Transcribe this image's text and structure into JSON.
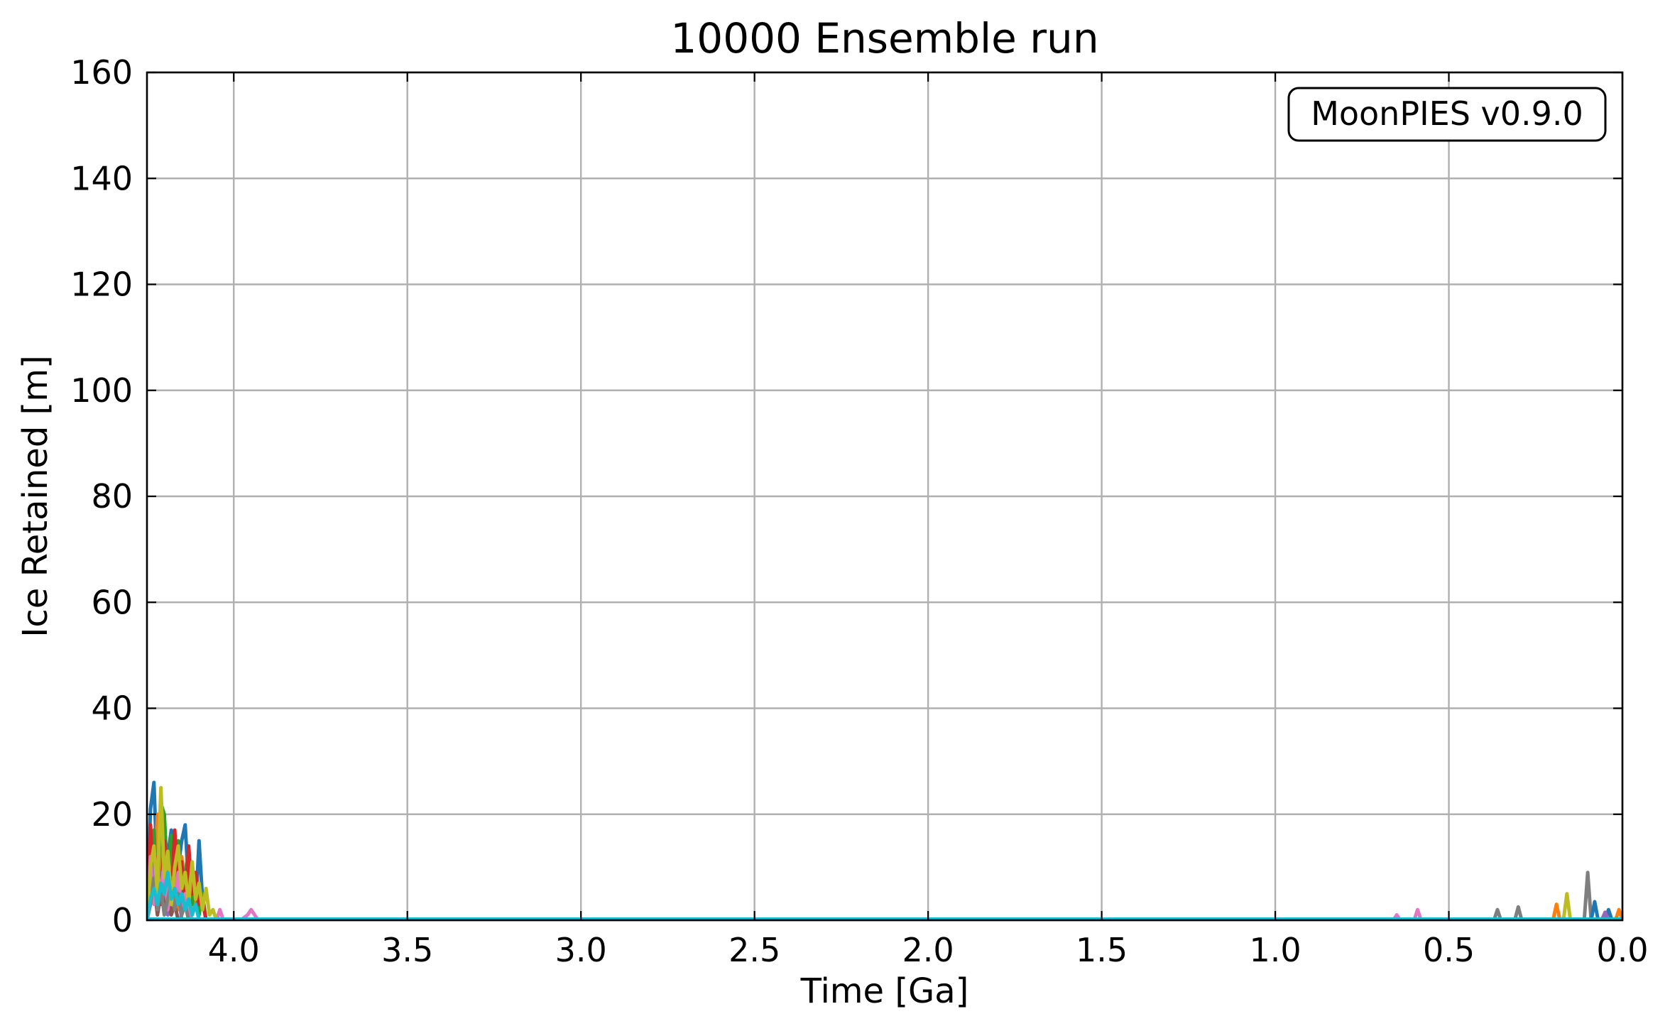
{
  "chart_data": {
    "type": "line",
    "title": "10000 Ensemble run",
    "xlabel": "Time [Ga]",
    "ylabel": "Ice Retained [m]",
    "xlim": [
      4.25,
      0.0
    ],
    "x_inverted": true,
    "ylim": [
      0,
      160
    ],
    "xticks": [
      4.0,
      3.5,
      3.0,
      2.5,
      2.0,
      1.5,
      1.0,
      0.5,
      0.0
    ],
    "xtick_labels": [
      "4.0",
      "3.5",
      "3.0",
      "2.5",
      "2.0",
      "1.5",
      "1.0",
      "0.5",
      "0.0"
    ],
    "yticks": [
      0,
      20,
      40,
      60,
      80,
      100,
      120,
      140,
      160
    ],
    "ytick_labels": [
      "0",
      "20",
      "40",
      "60",
      "80",
      "100",
      "120",
      "140",
      "160"
    ],
    "grid": true,
    "annotation": "MoonPIES v0.9.0",
    "annotation_placement": "top-right",
    "palette": [
      "#1f77b4",
      "#ff7f0e",
      "#2ca02c",
      "#d62728",
      "#9467bd",
      "#8c564b",
      "#e377c2",
      "#7f7f7f",
      "#bcbd22",
      "#17becf"
    ],
    "baseline": {
      "y": 0,
      "color": "#17becf"
    },
    "series": [
      {
        "color": "#1f77b4",
        "points": [
          [
            4.25,
            0
          ],
          [
            4.24,
            21
          ],
          [
            4.23,
            26
          ],
          [
            4.22,
            8
          ],
          [
            4.21,
            16
          ],
          [
            4.2,
            4
          ],
          [
            4.19,
            12
          ],
          [
            4.18,
            17
          ],
          [
            4.17,
            5
          ],
          [
            4.16,
            10
          ],
          [
            4.15,
            15
          ],
          [
            4.14,
            18
          ],
          [
            4.13,
            6
          ],
          [
            4.12,
            11
          ],
          [
            4.11,
            2
          ],
          [
            4.1,
            15
          ],
          [
            4.09,
            4
          ],
          [
            4.08,
            0
          ]
        ]
      },
      {
        "color": "#ff7f0e",
        "points": [
          [
            4.25,
            0
          ],
          [
            4.24,
            14
          ],
          [
            4.23,
            4
          ],
          [
            4.22,
            20
          ],
          [
            4.21,
            9
          ],
          [
            4.2,
            13
          ],
          [
            4.19,
            3
          ],
          [
            4.18,
            14
          ],
          [
            4.17,
            8
          ],
          [
            4.16,
            2
          ],
          [
            4.15,
            12
          ],
          [
            4.14,
            5
          ],
          [
            4.13,
            9
          ],
          [
            4.12,
            1
          ],
          [
            4.11,
            7
          ],
          [
            4.1,
            0
          ]
        ]
      },
      {
        "color": "#2ca02c",
        "points": [
          [
            4.25,
            0
          ],
          [
            4.24,
            9
          ],
          [
            4.23,
            17
          ],
          [
            4.22,
            3
          ],
          [
            4.21,
            22
          ],
          [
            4.2,
            20
          ],
          [
            4.19,
            7
          ],
          [
            4.18,
            16
          ],
          [
            4.17,
            11
          ],
          [
            4.16,
            15
          ],
          [
            4.15,
            4
          ],
          [
            4.14,
            9
          ],
          [
            4.13,
            13
          ],
          [
            4.12,
            3
          ],
          [
            4.11,
            8
          ],
          [
            4.1,
            1
          ],
          [
            4.09,
            5
          ],
          [
            4.08,
            0
          ]
        ]
      },
      {
        "color": "#d62728",
        "points": [
          [
            4.25,
            0
          ],
          [
            4.24,
            18
          ],
          [
            4.23,
            6
          ],
          [
            4.22,
            12
          ],
          [
            4.21,
            3
          ],
          [
            4.2,
            15
          ],
          [
            4.19,
            9
          ],
          [
            4.18,
            4
          ],
          [
            4.17,
            17
          ],
          [
            4.16,
            6
          ],
          [
            4.15,
            11
          ],
          [
            4.14,
            2
          ],
          [
            4.13,
            14
          ],
          [
            4.12,
            5
          ],
          [
            4.11,
            9
          ],
          [
            4.1,
            3
          ],
          [
            4.09,
            4
          ],
          [
            4.08,
            0
          ]
        ]
      },
      {
        "color": "#9467bd",
        "points": [
          [
            4.25,
            0
          ],
          [
            4.24,
            5
          ],
          [
            4.23,
            11
          ],
          [
            4.22,
            2
          ],
          [
            4.21,
            9
          ],
          [
            4.2,
            6
          ],
          [
            4.19,
            1
          ],
          [
            4.18,
            8
          ],
          [
            4.17,
            3
          ],
          [
            4.16,
            6
          ],
          [
            4.15,
            0
          ]
        ]
      },
      {
        "color": "#8c564b",
        "points": [
          [
            4.25,
            0
          ],
          [
            4.24,
            4
          ],
          [
            4.23,
            7
          ],
          [
            4.22,
            1
          ],
          [
            4.21,
            5
          ],
          [
            4.2,
            2
          ],
          [
            4.19,
            6
          ],
          [
            4.18,
            1
          ],
          [
            4.17,
            3
          ],
          [
            4.16,
            0
          ]
        ]
      },
      {
        "color": "#e377c2",
        "points": [
          [
            4.25,
            0
          ],
          [
            4.24,
            12
          ],
          [
            4.23,
            3
          ],
          [
            4.22,
            9
          ],
          [
            4.21,
            5
          ],
          [
            4.2,
            11
          ],
          [
            4.19,
            2
          ],
          [
            4.18,
            7
          ],
          [
            4.17,
            4
          ],
          [
            4.16,
            9
          ],
          [
            4.15,
            1
          ],
          [
            4.14,
            5
          ],
          [
            4.13,
            2
          ],
          [
            4.12,
            0
          ],
          [
            4.05,
            0
          ],
          [
            4.04,
            2
          ],
          [
            4.03,
            0
          ],
          [
            3.98,
            0
          ],
          [
            3.96,
            1
          ],
          [
            3.95,
            2
          ],
          [
            3.94,
            1
          ],
          [
            3.93,
            0
          ]
        ]
      },
      {
        "color": "#7f7f7f",
        "points": [
          [
            4.25,
            0
          ],
          [
            4.24,
            3
          ],
          [
            4.23,
            8
          ],
          [
            4.22,
            2
          ],
          [
            4.21,
            6
          ],
          [
            4.2,
            1
          ],
          [
            4.19,
            4
          ],
          [
            4.18,
            7
          ],
          [
            4.17,
            2
          ],
          [
            4.16,
            5
          ],
          [
            4.15,
            1
          ],
          [
            4.14,
            3
          ],
          [
            4.13,
            0
          ]
        ]
      },
      {
        "color": "#bcbd22",
        "points": [
          [
            4.25,
            0
          ],
          [
            4.24,
            10
          ],
          [
            4.23,
            14
          ],
          [
            4.22,
            5
          ],
          [
            4.21,
            25
          ],
          [
            4.2,
            8
          ],
          [
            4.19,
            13
          ],
          [
            4.18,
            3
          ],
          [
            4.17,
            10
          ],
          [
            4.16,
            14
          ],
          [
            4.15,
            6
          ],
          [
            4.14,
            9
          ],
          [
            4.13,
            3
          ],
          [
            4.12,
            11
          ],
          [
            4.11,
            4
          ],
          [
            4.1,
            7
          ],
          [
            4.09,
            2
          ],
          [
            4.08,
            6
          ],
          [
            4.07,
            1
          ],
          [
            4.06,
            2
          ],
          [
            4.05,
            0
          ]
        ]
      },
      {
        "color": "#17becf",
        "points": [
          [
            4.25,
            0
          ],
          [
            4.24,
            4
          ],
          [
            4.23,
            6
          ],
          [
            4.22,
            3
          ],
          [
            4.21,
            7
          ],
          [
            4.2,
            5
          ],
          [
            4.19,
            9
          ],
          [
            4.18,
            4
          ],
          [
            4.17,
            6
          ],
          [
            4.16,
            3
          ],
          [
            4.15,
            5
          ],
          [
            4.14,
            2
          ],
          [
            4.13,
            4
          ],
          [
            4.12,
            1
          ],
          [
            4.11,
            3
          ],
          [
            4.1,
            0
          ]
        ]
      },
      {
        "color": "#e377c2",
        "points": [
          [
            0.66,
            0
          ],
          [
            0.65,
            1
          ],
          [
            0.64,
            0
          ],
          [
            0.6,
            0
          ],
          [
            0.59,
            2
          ],
          [
            0.58,
            0
          ]
        ]
      },
      {
        "color": "#7f7f7f",
        "points": [
          [
            0.37,
            0
          ],
          [
            0.36,
            2
          ],
          [
            0.35,
            0
          ],
          [
            0.31,
            0
          ],
          [
            0.3,
            2.5
          ],
          [
            0.29,
            0
          ],
          [
            0.11,
            0
          ],
          [
            0.1,
            9
          ],
          [
            0.09,
            0
          ]
        ]
      },
      {
        "color": "#ff7f0e",
        "points": [
          [
            0.2,
            0
          ],
          [
            0.19,
            3
          ],
          [
            0.18,
            0
          ],
          [
            0.02,
            0
          ],
          [
            0.01,
            2
          ],
          [
            0.0,
            0
          ]
        ]
      },
      {
        "color": "#bcbd22",
        "points": [
          [
            0.17,
            0
          ],
          [
            0.16,
            5
          ],
          [
            0.15,
            0
          ]
        ]
      },
      {
        "color": "#1f77b4",
        "points": [
          [
            0.09,
            0
          ],
          [
            0.08,
            3.5
          ],
          [
            0.07,
            0
          ],
          [
            0.05,
            0
          ],
          [
            0.04,
            2
          ],
          [
            0.03,
            0
          ]
        ]
      },
      {
        "color": "#9467bd",
        "points": [
          [
            0.06,
            0
          ],
          [
            0.05,
            1.5
          ],
          [
            0.04,
            0
          ]
        ]
      }
    ]
  }
}
